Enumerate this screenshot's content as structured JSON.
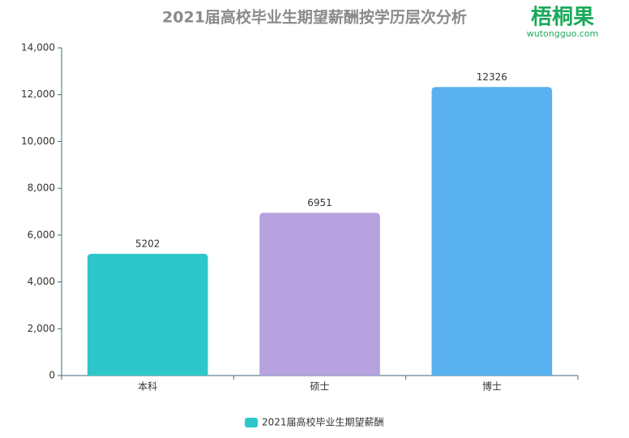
{
  "logo": {
    "name": "梧桐果",
    "url": "wutongguo.com"
  },
  "chart_data": {
    "type": "bar",
    "title": "2021届高校毕业生期望薪酬按学历层次分析",
    "categories": [
      "本科",
      "硕士",
      "博士"
    ],
    "series": [
      {
        "name": "2021届高校毕业生期望薪酬",
        "color": "#2ec7c9",
        "colors": [
          "#2ec7c9",
          "#b6a2de",
          "#5ab1ef"
        ],
        "values": [
          5202,
          6951,
          12326
        ]
      }
    ],
    "ylim": [
      0,
      14000
    ],
    "yticks": [
      0,
      {
        "value": 2000,
        "label": "2,000"
      },
      {
        "value": 4000,
        "label": "4,000"
      },
      {
        "value": 6000,
        "label": "6,000"
      },
      {
        "value": 8000,
        "label": "8,000"
      },
      {
        "value": 10000,
        "label": "10,000"
      },
      {
        "value": 12000,
        "label": "12,000"
      },
      {
        "value": 14000,
        "label": "14,000"
      }
    ],
    "grid": false,
    "legend": "bottom"
  }
}
